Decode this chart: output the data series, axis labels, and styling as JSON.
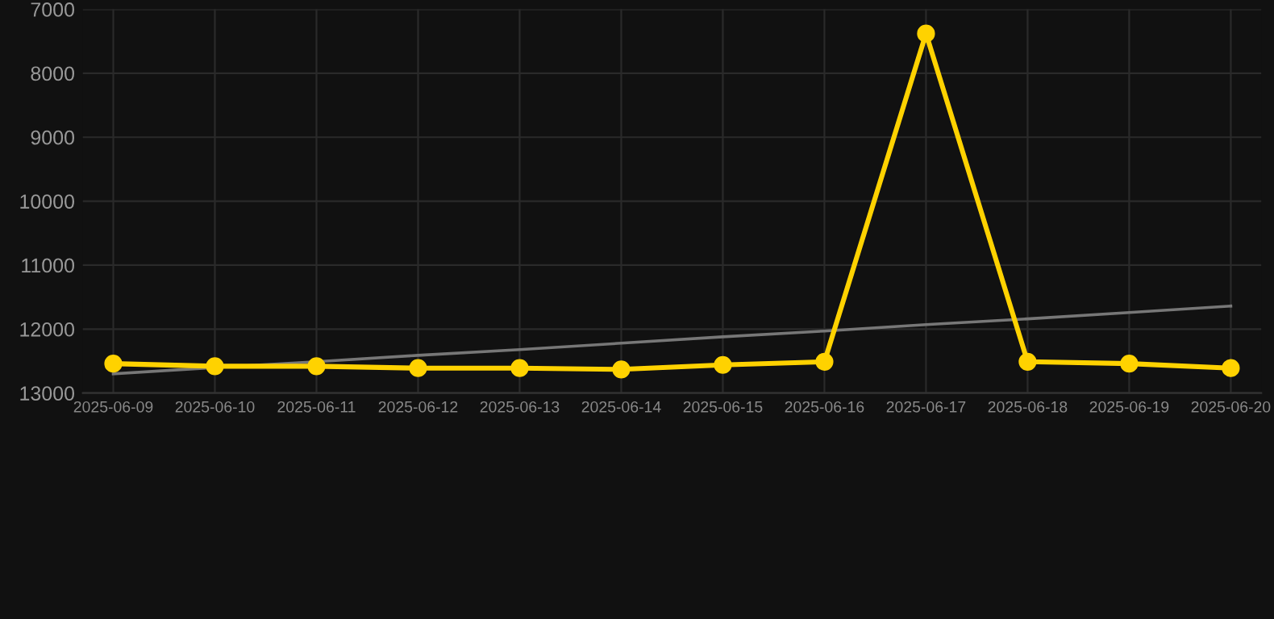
{
  "chart_data": {
    "type": "line",
    "categories": [
      "2025-06-09",
      "2025-06-10",
      "2025-06-11",
      "2025-06-12",
      "2025-06-13",
      "2025-06-14",
      "2025-06-15",
      "2025-06-16",
      "2025-06-17",
      "2025-06-18",
      "2025-06-19",
      "2025-06-20"
    ],
    "series": [
      {
        "color": "#ffd200",
        "values": [
          12540,
          12580,
          12580,
          12610,
          12610,
          12630,
          12560,
          12510,
          7380,
          12510,
          12540,
          12610
        ],
        "marker": "circle"
      },
      {
        "type": "line",
        "color": "#777777",
        "values": [
          12700,
          12600,
          12510,
          12410,
          12320,
          12220,
          12120,
          12030,
          11930,
          11840,
          11740,
          11640
        ],
        "marker": "none"
      }
    ],
    "ylim": [
      13000,
      7000
    ],
    "yticks": [
      7000,
      8000,
      9000,
      10000,
      11000,
      12000,
      13000
    ],
    "grid": true,
    "line_style": "solid"
  }
}
